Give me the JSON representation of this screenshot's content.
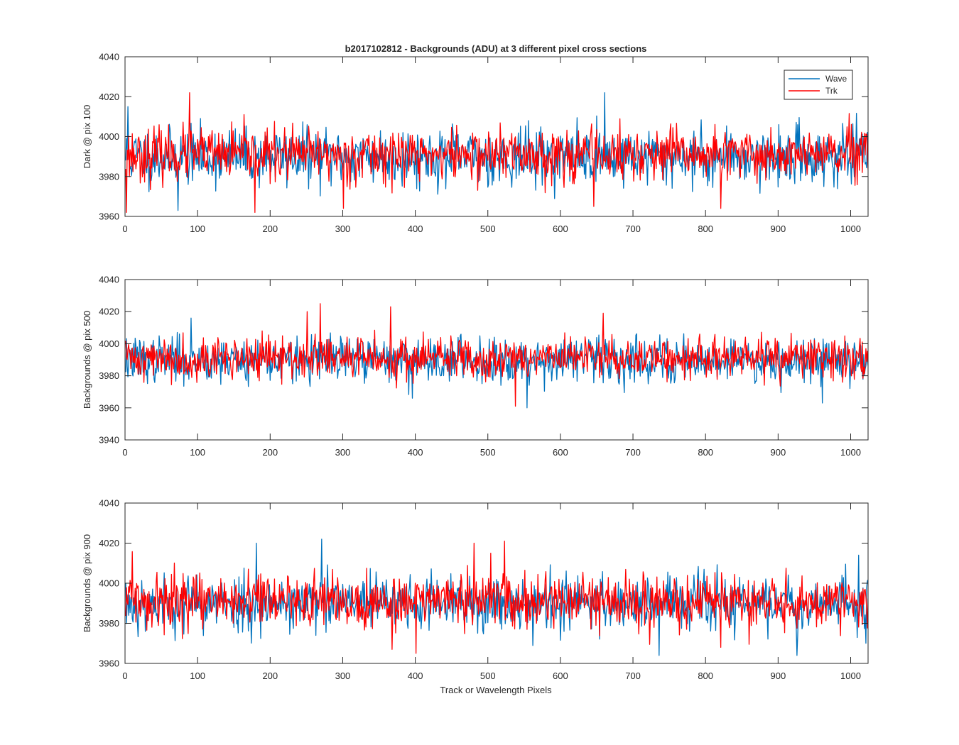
{
  "figure": {
    "title": "b2017102812 - Backgrounds (ADU) at 3 different pixel cross sections",
    "xlabel": "Track or Wavelength Pixels"
  },
  "legend": {
    "entries": [
      {
        "name": "Wave",
        "color": "#0072BD"
      },
      {
        "name": "Trk",
        "color": "#FF0000"
      }
    ]
  },
  "chart_data": [
    {
      "type": "line",
      "title": "b2017102812 - Backgrounds (ADU) at 3 different pixel cross sections",
      "xlabel": "",
      "ylabel": "Dark @ pix 100",
      "xlim": [
        0,
        1024
      ],
      "ylim": [
        3960,
        4040
      ],
      "xticks": [
        "0",
        "100",
        "200",
        "300",
        "400",
        "500",
        "600",
        "700",
        "800",
        "900",
        "1000"
      ],
      "yticks": [
        "3960",
        "3980",
        "4000",
        "4020",
        "4040"
      ],
      "grid": false,
      "legend_position": "top-right",
      "series": [
        {
          "name": "Wave",
          "color": "#0072BD",
          "mean": 3990,
          "spread": 7,
          "points": 1024,
          "seed": 11,
          "spikes": [
            [
              3,
              4015
            ],
            [
              72,
              3963
            ],
            [
              660,
              4022
            ],
            [
              900,
              4006
            ]
          ]
        },
        {
          "name": "Trk",
          "color": "#FF0000",
          "mean": 3991,
          "spread": 6.5,
          "points": 1024,
          "seed": 23,
          "spikes": [
            [
              1,
              3962
            ],
            [
              88,
              4022
            ],
            [
              178,
              3962
            ],
            [
              300,
              3964
            ],
            [
              645,
              3965
            ],
            [
              820,
              3964
            ]
          ]
        }
      ]
    },
    {
      "type": "line",
      "title": "",
      "xlabel": "",
      "ylabel": "Backgrounds @ pix 500",
      "xlim": [
        0,
        1024
      ],
      "ylim": [
        3940,
        4040
      ],
      "xticks": [
        "0",
        "100",
        "200",
        "300",
        "400",
        "500",
        "600",
        "700",
        "800",
        "900",
        "1000"
      ],
      "yticks": [
        "3940",
        "3960",
        "3980",
        "4000",
        "4020",
        "4040"
      ],
      "grid": false,
      "series": [
        {
          "name": "Wave",
          "color": "#0072BD",
          "mean": 3990,
          "spread": 7,
          "points": 1024,
          "seed": 37,
          "spikes": [
            [
              395,
              3966
            ],
            [
              553,
              3960
            ],
            [
              960,
              3963
            ],
            [
              90,
              4016
            ]
          ]
        },
        {
          "name": "Trk",
          "color": "#FF0000",
          "mean": 3991,
          "spread": 6.5,
          "points": 1024,
          "seed": 41,
          "spikes": [
            [
              268,
              4025
            ],
            [
              365,
              4023
            ],
            [
              537,
              3961
            ],
            [
              658,
              4019
            ],
            [
              250,
              4020
            ]
          ]
        }
      ]
    },
    {
      "type": "line",
      "title": "",
      "xlabel": "Track or Wavelength Pixels",
      "ylabel": "Backgrounds @ pix 900",
      "xlim": [
        0,
        1024
      ],
      "ylim": [
        3960,
        4040
      ],
      "xticks": [
        "0",
        "100",
        "200",
        "300",
        "400",
        "500",
        "600",
        "700",
        "800",
        "900",
        "1000"
      ],
      "yticks": [
        "3960",
        "3980",
        "4000",
        "4020",
        "4040"
      ],
      "grid": false,
      "series": [
        {
          "name": "Wave",
          "color": "#0072BD",
          "mean": 3990,
          "spread": 7,
          "points": 1024,
          "seed": 53,
          "spikes": [
            [
              270,
              4022
            ],
            [
              180,
              4020
            ],
            [
              735,
              3964
            ],
            [
              925,
              3964
            ],
            [
              1010,
              4014
            ]
          ]
        },
        {
          "name": "Trk",
          "color": "#FF0000",
          "mean": 3991,
          "spread": 6.5,
          "points": 1024,
          "seed": 59,
          "spikes": [
            [
              400,
              3965
            ],
            [
              522,
              4021
            ],
            [
              367,
              3967
            ],
            [
              820,
              3968
            ],
            [
              480,
              4020
            ]
          ]
        }
      ]
    }
  ]
}
